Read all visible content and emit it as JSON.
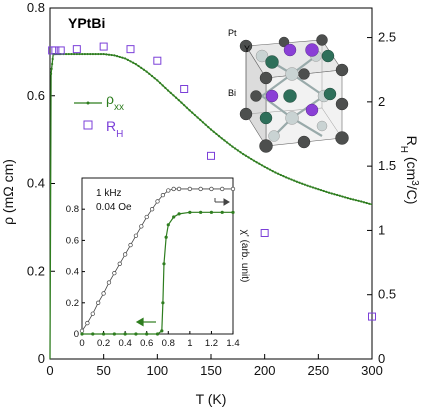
{
  "chart_data": [
    {
      "type": "line",
      "title": "YPtBi",
      "xlabel": "T (K)",
      "ylabel": "ρ (mΩ cm)",
      "y2label": "R_H (cm³/C)",
      "xlim": [
        0,
        300
      ],
      "ylim": [
        0,
        0.8
      ],
      "y2lim": [
        0,
        2.73
      ],
      "xticks": [
        "0",
        "50",
        "100",
        "150",
        "200",
        "250",
        "300"
      ],
      "yticks": [
        "0",
        "0.2",
        "0.4",
        "0.6",
        "0.8"
      ],
      "y2ticks": [
        "0",
        "0.5",
        "1",
        "1.5",
        "2",
        "2.5"
      ],
      "grid": false,
      "legend_position": "left-middle",
      "series": [
        {
          "name": "ρxx",
          "color": "#2e7d1f",
          "axis": "left",
          "marker": "small-dot-line",
          "x": [
            0,
            1,
            3,
            5,
            10,
            20,
            30,
            40,
            50,
            60,
            70,
            80,
            90,
            100,
            110,
            120,
            130,
            140,
            150,
            160,
            170,
            180,
            190,
            200,
            210,
            220,
            230,
            240,
            250,
            260,
            270,
            280,
            290,
            300
          ],
          "y": [
            0,
            0.65,
            0.695,
            0.695,
            0.695,
            0.695,
            0.695,
            0.695,
            0.695,
            0.692,
            0.685,
            0.672,
            0.655,
            0.635,
            0.612,
            0.59,
            0.567,
            0.545,
            0.523,
            0.503,
            0.484,
            0.467,
            0.452,
            0.438,
            0.425,
            0.414,
            0.404,
            0.395,
            0.387,
            0.379,
            0.372,
            0.365,
            0.359,
            0.352
          ]
        },
        {
          "name": "RH",
          "color": "#7b3fd8",
          "axis": "right",
          "marker": "open-square",
          "x": [
            2,
            5,
            10,
            25,
            50,
            75,
            100,
            125,
            150,
            200,
            300
          ],
          "y": [
            2.4,
            2.4,
            2.4,
            2.41,
            2.43,
            2.41,
            2.32,
            2.1,
            1.58,
            0.98,
            0.33
          ]
        }
      ]
    },
    {
      "type": "line",
      "title": "",
      "xlabel": "",
      "ylabel": "",
      "y2label": "χ' (arb. unit)",
      "annotations": [
        "1 kHz",
        "0.04 Oe"
      ],
      "xlim": [
        0,
        1.4
      ],
      "ylim": [
        0,
        1.0
      ],
      "xticks": [
        "0",
        "0.2",
        "0.4",
        "0.6",
        "0.8",
        "1",
        "1.2",
        "1.4"
      ],
      "yticks": [
        "0",
        "0.2",
        "0.4",
        "0.6",
        "0.8"
      ],
      "series": [
        {
          "name": "ρ",
          "color": "#2e7d1f",
          "axis": "left",
          "marker": "filled-dot",
          "x": [
            0.0,
            0.1,
            0.2,
            0.3,
            0.4,
            0.5,
            0.6,
            0.7,
            0.74,
            0.75,
            0.76,
            0.78,
            0.8,
            0.85,
            0.9,
            1.0,
            1.1,
            1.2,
            1.3,
            1.4
          ],
          "y": [
            0.0,
            0.0,
            0.0,
            0.0,
            0.0,
            0.0,
            0.0,
            0.0,
            0.02,
            0.2,
            0.45,
            0.62,
            0.7,
            0.75,
            0.77,
            0.78,
            0.78,
            0.78,
            0.78,
            0.78
          ]
        },
        {
          "name": "χ'",
          "color": "#444444",
          "axis": "right",
          "marker": "open-circle",
          "x": [
            0.0,
            0.05,
            0.1,
            0.15,
            0.2,
            0.25,
            0.3,
            0.35,
            0.4,
            0.45,
            0.5,
            0.55,
            0.6,
            0.65,
            0.7,
            0.75,
            0.8,
            0.85,
            0.9,
            1.0,
            1.1,
            1.2,
            1.3,
            1.4
          ],
          "y": [
            0.02,
            0.07,
            0.13,
            0.2,
            0.26,
            0.33,
            0.39,
            0.45,
            0.51,
            0.57,
            0.63,
            0.69,
            0.75,
            0.8,
            0.85,
            0.89,
            0.92,
            0.93,
            0.93,
            0.93,
            0.93,
            0.93,
            0.93,
            0.93
          ]
        }
      ]
    }
  ],
  "structure": {
    "atoms": [
      "Pt",
      "Y",
      "Bi"
    ],
    "colors": {
      "Pt": "#5a5a5a",
      "Y": "#8a3fd6",
      "Bi": "#2e6f5a"
    }
  }
}
